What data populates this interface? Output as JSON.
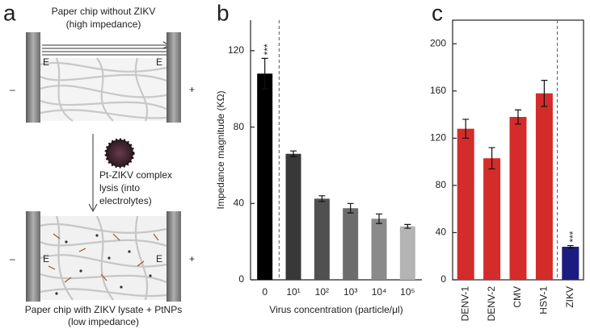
{
  "diagram": {
    "panel_label": "a",
    "top_title": "Paper chip without ZIKV",
    "top_subtitle": "(high impedance)",
    "top_minus": "–",
    "top_electrode_left": "E",
    "top_electrode_right": "E",
    "top_plus": "+",
    "step_lines": [
      "Pt-ZIKV complex",
      "lysis (into",
      "electrolytes)"
    ],
    "bottom_minus": "–",
    "bottom_electrode_left": "E",
    "bottom_electrode_right": "E",
    "bottom_plus": "+",
    "bottom_title": "Paper chip with ZIKV lysate + PtNPs",
    "bottom_subtitle": "(low impedance)"
  },
  "chart_data": [
    {
      "type": "bar",
      "panel_label": "b",
      "y_label": "Impedance magnitude (KΩ)",
      "x_label": "Virus concentration (particle/μl)",
      "categories": [
        "0",
        "10¹",
        "10²",
        "10³",
        "10⁴",
        "10⁵"
      ],
      "values": [
        108,
        66,
        42.5,
        37.5,
        32,
        28
      ],
      "errors": [
        8,
        1.5,
        1.5,
        2.5,
        2.5,
        1
      ],
      "colors": [
        "#000000",
        "#383838",
        "#505050",
        "#6c6c6c",
        "#8a8a8a",
        "#b4b4b4"
      ],
      "annotation": "***",
      "ylim": [
        0,
        136
      ],
      "yticks": [
        0,
        40,
        80,
        120
      ]
    },
    {
      "type": "bar",
      "panel_label": "c",
      "categories": [
        "DENV-1",
        "DENV-2",
        "CMV",
        "HSV-1",
        "ZIKV"
      ],
      "values": [
        128,
        103,
        138,
        158,
        28
      ],
      "errors": [
        8,
        9,
        6,
        11,
        1
      ],
      "colors": [
        "#d42b2b",
        "#d42b2b",
        "#d42b2b",
        "#d42b2b",
        "#1c1c80"
      ],
      "annotation": "***",
      "ylim": [
        0,
        220
      ],
      "yticks": [
        0,
        40,
        80,
        120,
        160,
        200
      ]
    }
  ]
}
